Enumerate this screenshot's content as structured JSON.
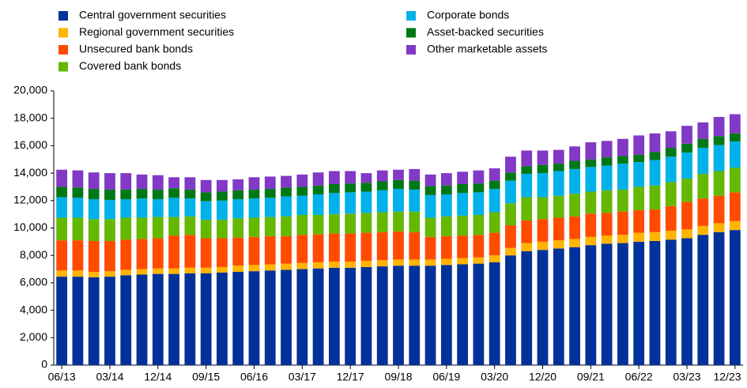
{
  "chart_data": {
    "type": "stacked_bar",
    "categories": [
      "06/13",
      null,
      null,
      "03/14",
      null,
      null,
      "12/14",
      null,
      null,
      "09/15",
      null,
      null,
      "06/16",
      null,
      null,
      "03/17",
      null,
      null,
      "12/17",
      null,
      null,
      "09/18",
      null,
      null,
      "06/19",
      null,
      null,
      "03/20",
      null,
      null,
      "12/20",
      null,
      null,
      "09/21",
      null,
      null,
      "06/22",
      null,
      null,
      "03/23",
      null,
      null,
      "12/23"
    ],
    "series": [
      {
        "name": "Central government securities",
        "color": "#003299",
        "values": [
          6450,
          6450,
          6400,
          6450,
          6550,
          6600,
          6650,
          6650,
          6700,
          6700,
          6750,
          6800,
          6850,
          6900,
          6950,
          7000,
          7050,
          7100,
          7100,
          7150,
          7200,
          7250,
          7250,
          7250,
          7300,
          7350,
          7400,
          7500,
          8000,
          8300,
          8400,
          8500,
          8600,
          8750,
          8850,
          8900,
          9000,
          9050,
          9150,
          9250,
          9500,
          9700,
          9850
        ]
      },
      {
        "name": "Regional government securities",
        "color": "#ffb400",
        "values": [
          450,
          450,
          400,
          400,
          400,
          400,
          400,
          400,
          400,
          400,
          400,
          450,
          450,
          450,
          450,
          450,
          450,
          450,
          450,
          450,
          450,
          450,
          450,
          450,
          450,
          450,
          450,
          500,
          550,
          600,
          600,
          600,
          600,
          600,
          600,
          600,
          650,
          650,
          650,
          650,
          650,
          650,
          650
        ]
      },
      {
        "name": "Unsecured bank bonds",
        "color": "#ff4b00",
        "values": [
          2200,
          2200,
          2250,
          2200,
          2200,
          2200,
          2200,
          2400,
          2400,
          2150,
          2100,
          2050,
          2050,
          2050,
          2000,
          2050,
          2050,
          2050,
          2050,
          2050,
          2050,
          2050,
          2000,
          1650,
          1650,
          1650,
          1650,
          1650,
          1650,
          1650,
          1650,
          1650,
          1650,
          1700,
          1650,
          1700,
          1650,
          1650,
          1800,
          2000,
          2000,
          2000,
          2100
        ]
      },
      {
        "name": "Covered  bank bonds",
        "color": "#65b800",
        "values": [
          1650,
          1650,
          1600,
          1600,
          1600,
          1550,
          1550,
          1350,
          1350,
          1350,
          1350,
          1400,
          1400,
          1400,
          1450,
          1450,
          1400,
          1400,
          1450,
          1450,
          1450,
          1450,
          1500,
          1400,
          1450,
          1450,
          1450,
          1500,
          1600,
          1700,
          1600,
          1600,
          1650,
          1600,
          1650,
          1600,
          1700,
          1750,
          1750,
          1700,
          1800,
          1800,
          1800
        ]
      },
      {
        "name": "Corporate bonds",
        "color": "#00b1ea",
        "values": [
          1500,
          1450,
          1450,
          1400,
          1350,
          1400,
          1300,
          1400,
          1300,
          1350,
          1400,
          1400,
          1400,
          1400,
          1450,
          1400,
          1500,
          1550,
          1550,
          1550,
          1600,
          1650,
          1600,
          1650,
          1600,
          1650,
          1650,
          1700,
          1650,
          1700,
          1750,
          1800,
          1800,
          1800,
          1800,
          1900,
          1800,
          1850,
          1850,
          1900,
          1900,
          1900,
          1900
        ]
      },
      {
        "name": "Asset-backed securities",
        "color": "#007816",
        "values": [
          750,
          750,
          750,
          750,
          700,
          700,
          700,
          700,
          650,
          650,
          650,
          650,
          650,
          650,
          650,
          650,
          650,
          650,
          650,
          650,
          650,
          650,
          650,
          650,
          650,
          650,
          650,
          600,
          600,
          550,
          600,
          550,
          600,
          550,
          600,
          550,
          550,
          600,
          650,
          650,
          650,
          650,
          600
        ]
      },
      {
        "name": "Other marketable assets",
        "color": "#8139c6",
        "values": [
          1250,
          1250,
          1200,
          1200,
          1200,
          1050,
          1050,
          800,
          900,
          900,
          850,
          800,
          900,
          900,
          850,
          900,
          950,
          950,
          900,
          700,
          800,
          750,
          850,
          850,
          900,
          900,
          950,
          900,
          1150,
          1150,
          1050,
          1000,
          1050,
          1250,
          1200,
          1250,
          1400,
          1350,
          1200,
          1300,
          1200,
          1400,
          1400
        ]
      }
    ],
    "ylim": [
      0,
      20000
    ],
    "yticks": [
      0,
      {
        "value": 2000,
        "label": "2,000"
      },
      {
        "value": 4000,
        "label": "4,000"
      },
      {
        "value": 6000,
        "label": "6,000"
      },
      {
        "value": 8000,
        "label": "8,000"
      },
      {
        "value": 10000,
        "label": "10,000"
      },
      {
        "value": 12000,
        "label": "12,000"
      },
      {
        "value": 14000,
        "label": "14,000"
      },
      {
        "value": 16000,
        "label": "16,000"
      },
      {
        "value": 18000,
        "label": "18,000"
      },
      {
        "value": 20000,
        "label": "20,000"
      }
    ],
    "grid": false
  }
}
